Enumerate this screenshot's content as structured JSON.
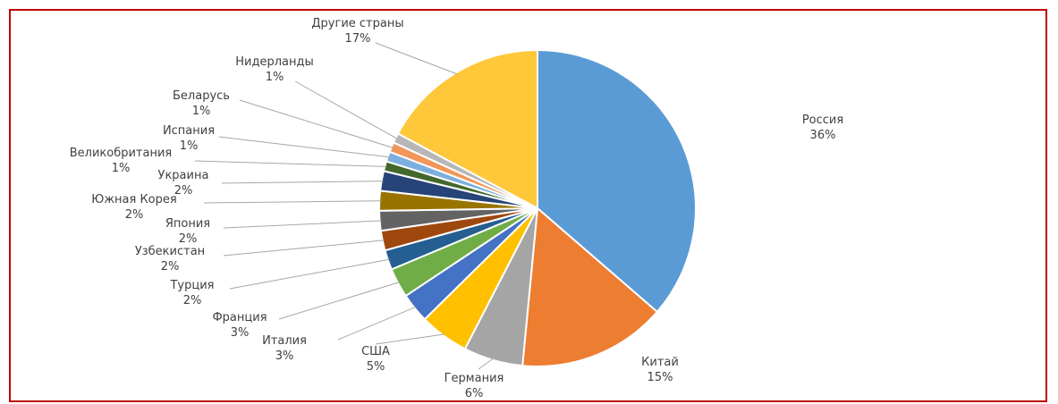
{
  "chart_data": {
    "type": "pie",
    "title": "",
    "slices": [
      {
        "label": "Россия",
        "value": 36,
        "value_label": "36%",
        "color": "#5b9bd5"
      },
      {
        "label": "Китай",
        "value": 15,
        "value_label": "15%",
        "color": "#ed7d31"
      },
      {
        "label": "Германия",
        "value": 6,
        "value_label": "6%",
        "color": "#a5a5a5"
      },
      {
        "label": "США",
        "value": 5,
        "value_label": "5%",
        "color": "#ffc000"
      },
      {
        "label": "Италия",
        "value": 3,
        "value_label": "3%",
        "color": "#4472c4"
      },
      {
        "label": "Франция",
        "value": 3,
        "value_label": "3%",
        "color": "#70ad47"
      },
      {
        "label": "Турция",
        "value": 2,
        "value_label": "2%",
        "color": "#255e91"
      },
      {
        "label": "Узбекистан",
        "value": 2,
        "value_label": "2%",
        "color": "#9e480e"
      },
      {
        "label": "Япония",
        "value": 2,
        "value_label": "2%",
        "color": "#636363"
      },
      {
        "label": "Южная Корея",
        "value": 2,
        "value_label": "2%",
        "color": "#997300"
      },
      {
        "label": "Украина",
        "value": 2,
        "value_label": "2%",
        "color": "#264478"
      },
      {
        "label": "Великобритания",
        "value": 1,
        "value_label": "1%",
        "color": "#43682b"
      },
      {
        "label": "Испания",
        "value": 1,
        "value_label": "1%",
        "color": "#7cafdd"
      },
      {
        "label": "Беларусь",
        "value": 1,
        "value_label": "1%",
        "color": "#f1975a"
      },
      {
        "label": "Нидерланды",
        "value": 1,
        "value_label": "1%",
        "color": "#b7b7b7"
      },
      {
        "label": "Другие страны",
        "value": 17,
        "value_label": "17%",
        "color": "#ffc73a"
      }
    ]
  }
}
